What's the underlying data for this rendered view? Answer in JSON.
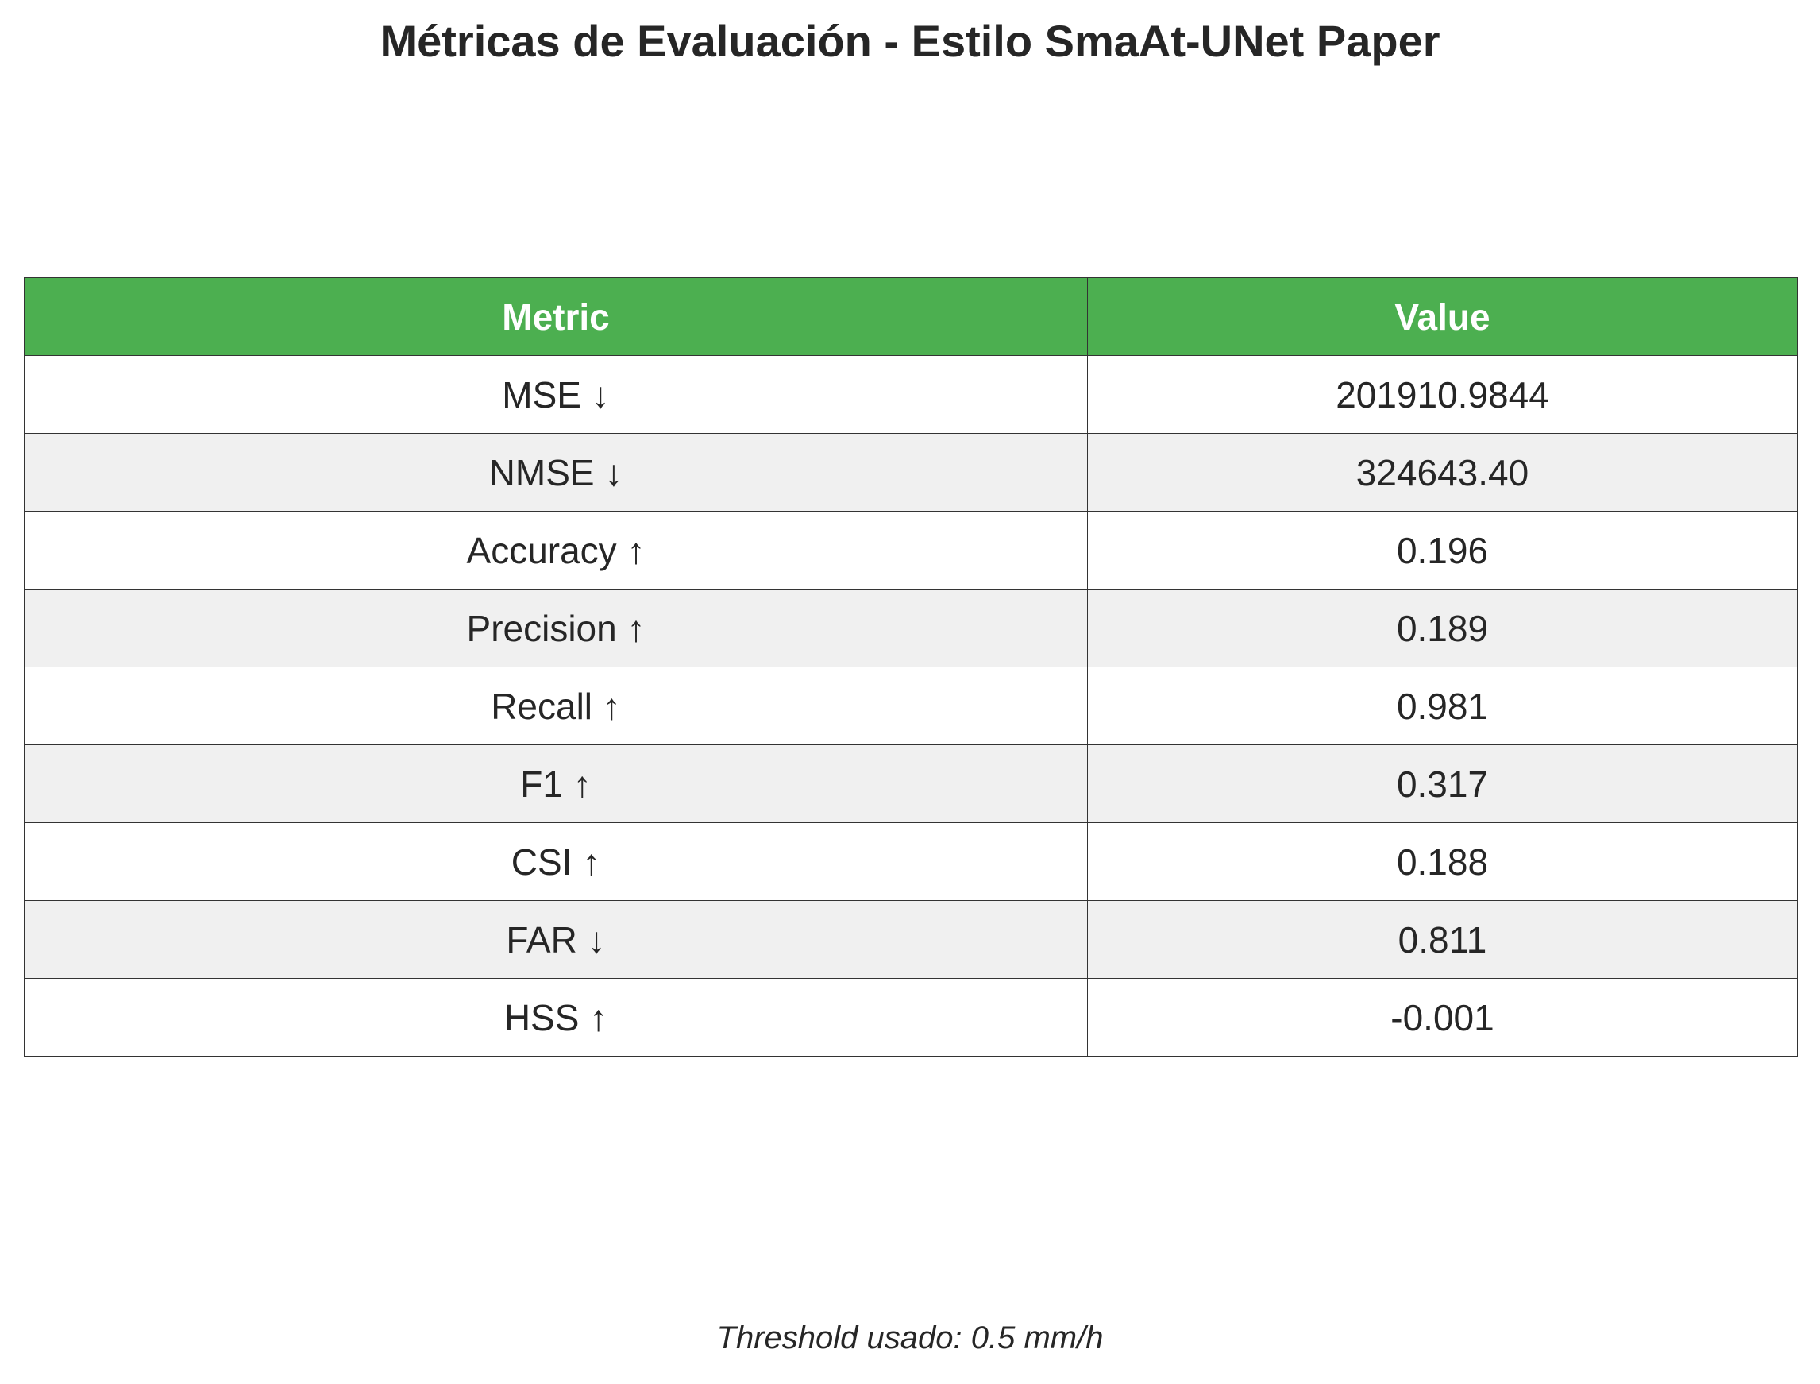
{
  "title": "Métricas de Evaluación - Estilo SmaAt-UNet Paper",
  "header_color": "#4caf50",
  "stripe_color": "#f0f0f0",
  "chart_data": {
    "type": "table",
    "title": "Métricas de Evaluación - Estilo SmaAt-UNet Paper",
    "columns": [
      "Metric",
      "Value"
    ],
    "rows": [
      [
        "MSE ↓",
        "201910.9844"
      ],
      [
        "NMSE ↓",
        "324643.40"
      ],
      [
        "Accuracy ↑",
        "0.196"
      ],
      [
        "Precision ↑",
        "0.189"
      ],
      [
        "Recall ↑",
        "0.981"
      ],
      [
        "F1 ↑",
        "0.317"
      ],
      [
        "CSI ↑",
        "0.188"
      ],
      [
        "FAR ↓",
        "0.811"
      ],
      [
        "HSS ↑",
        "-0.001"
      ]
    ],
    "annotation": "Threshold usado: 0.5 mm/h"
  }
}
